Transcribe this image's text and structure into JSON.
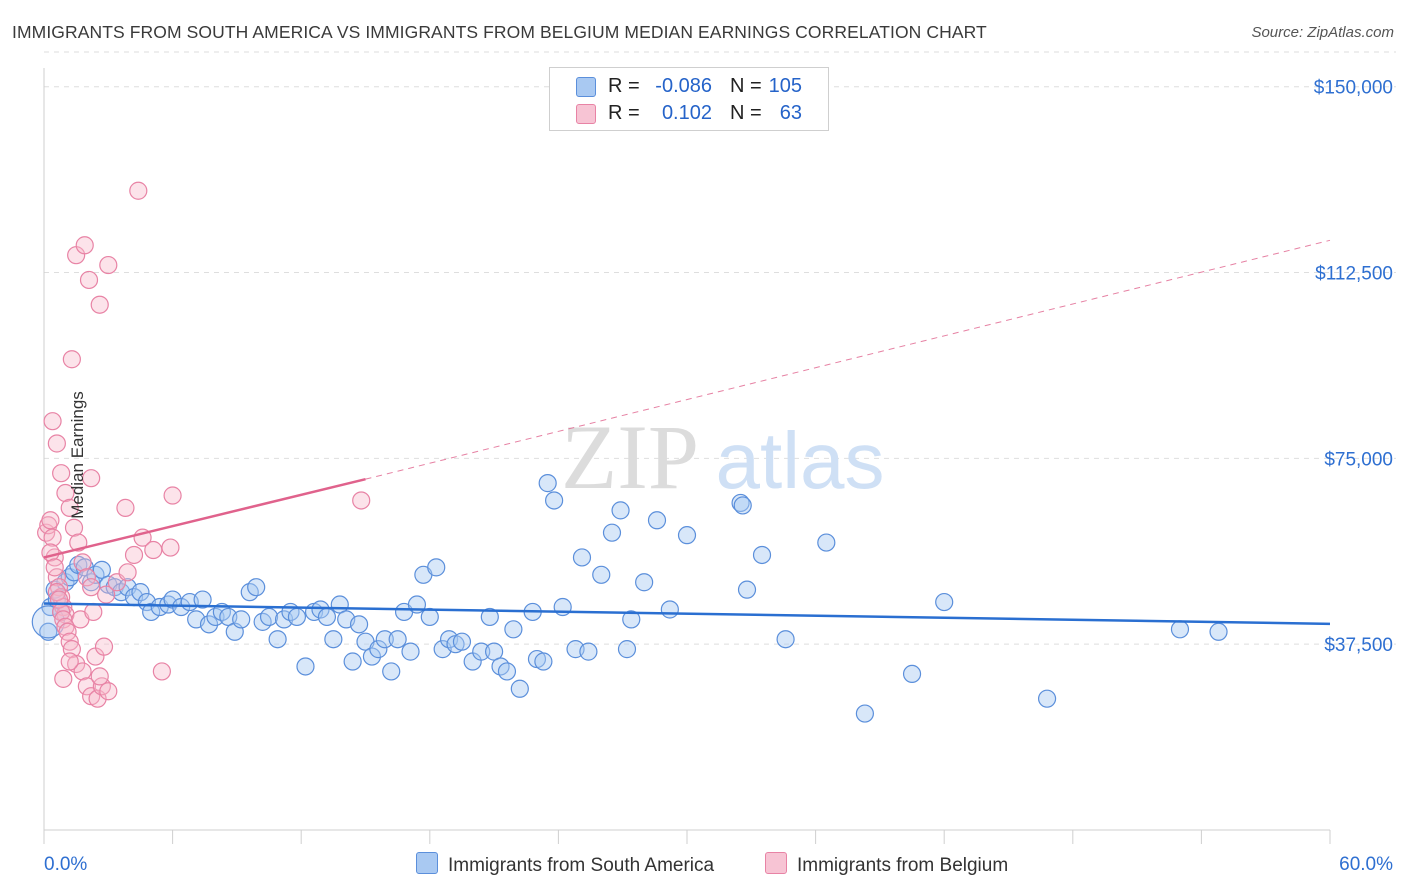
{
  "title": "IMMIGRANTS FROM SOUTH AMERICA VS IMMIGRANTS FROM BELGIUM MEDIAN EARNINGS CORRELATION CHART",
  "source": "Source: ZipAtlas.com",
  "watermark": {
    "part1": "ZIP",
    "part2": "atlas"
  },
  "legend": {
    "rows": [
      {
        "r_label": "R =",
        "r_value": "-0.086",
        "n_label": "N =",
        "n_value": "105"
      },
      {
        "r_label": "R =",
        "r_value": "0.102",
        "n_label": "N =",
        "n_value": "63"
      }
    ]
  },
  "bottom_legend": {
    "blue_label": "Immigrants from South America",
    "pink_label": "Immigrants from Belgium"
  },
  "colors": {
    "blue_fill": "#a9c9f2",
    "blue_stroke": "#5b8fdb",
    "blue_line": "#2a6fd1",
    "pink_fill": "#f7b8cb",
    "pink_stroke": "#e883a5",
    "pink_line": "#e0628c",
    "axis_text": "#2e6fd1"
  },
  "chart_data": {
    "type": "scatter",
    "title": "IMMIGRANTS FROM SOUTH AMERICA VS IMMIGRANTS FROM BELGIUM MEDIAN EARNINGS CORRELATION CHART",
    "xlabel": "",
    "ylabel": "Median Earnings",
    "xlim": [
      0,
      60
    ],
    "ylim": [
      0,
      157000
    ],
    "x_tick_labels": [
      "0.0%",
      "60.0%"
    ],
    "y_ticks": [
      37500,
      75000,
      112500,
      150000
    ],
    "y_tick_labels": [
      "$37,500",
      "$75,000",
      "$112,500",
      "$150,000"
    ],
    "series": [
      {
        "name": "Immigrants from South America",
        "color": "blue",
        "R": -0.086,
        "N": 105,
        "trend": {
          "x": [
            0,
            60
          ],
          "y": [
            45700,
            41600
          ],
          "dashed_to": null
        },
        "points": [
          [
            0.2,
            40000
          ],
          [
            0.3,
            45000
          ],
          [
            0.5,
            48500
          ],
          [
            0.6,
            46500
          ],
          [
            0.8,
            44000
          ],
          [
            1.0,
            50000
          ],
          [
            1.2,
            51000
          ],
          [
            1.4,
            52000
          ],
          [
            1.6,
            53500
          ],
          [
            1.9,
            53000
          ],
          [
            2.2,
            50000
          ],
          [
            2.4,
            51500
          ],
          [
            2.7,
            52500
          ],
          [
            3.0,
            49500
          ],
          [
            3.3,
            49000
          ],
          [
            3.6,
            48000
          ],
          [
            3.9,
            49000
          ],
          [
            4.2,
            47000
          ],
          [
            4.5,
            48000
          ],
          [
            4.8,
            46000
          ],
          [
            5.0,
            44000
          ],
          [
            5.4,
            45000
          ],
          [
            5.8,
            45500
          ],
          [
            6.0,
            46500
          ],
          [
            6.4,
            45000
          ],
          [
            6.8,
            46000
          ],
          [
            7.1,
            42500
          ],
          [
            7.4,
            46500
          ],
          [
            7.7,
            41500
          ],
          [
            8.0,
            43000
          ],
          [
            8.3,
            44000
          ],
          [
            8.6,
            43000
          ],
          [
            8.9,
            40000
          ],
          [
            9.2,
            42500
          ],
          [
            9.6,
            48000
          ],
          [
            9.9,
            49000
          ],
          [
            10.2,
            42000
          ],
          [
            10.5,
            43000
          ],
          [
            10.9,
            38500
          ],
          [
            11.2,
            42500
          ],
          [
            11.5,
            44000
          ],
          [
            11.8,
            43000
          ],
          [
            12.2,
            33000
          ],
          [
            12.6,
            44000
          ],
          [
            12.9,
            44500
          ],
          [
            13.2,
            43000
          ],
          [
            13.5,
            38500
          ],
          [
            13.8,
            45500
          ],
          [
            14.1,
            42500
          ],
          [
            14.4,
            34000
          ],
          [
            14.7,
            41500
          ],
          [
            15.0,
            38000
          ],
          [
            15.3,
            35000
          ],
          [
            15.6,
            36500
          ],
          [
            15.9,
            38500
          ],
          [
            16.2,
            32000
          ],
          [
            16.5,
            38500
          ],
          [
            16.8,
            44000
          ],
          [
            17.1,
            36000
          ],
          [
            17.4,
            45500
          ],
          [
            17.7,
            51500
          ],
          [
            18.0,
            43000
          ],
          [
            18.3,
            53000
          ],
          [
            18.6,
            36500
          ],
          [
            18.9,
            38500
          ],
          [
            19.2,
            37500
          ],
          [
            19.5,
            38000
          ],
          [
            20.0,
            34000
          ],
          [
            20.4,
            36000
          ],
          [
            20.8,
            43000
          ],
          [
            21.0,
            36000
          ],
          [
            21.3,
            33000
          ],
          [
            21.6,
            32000
          ],
          [
            21.9,
            40500
          ],
          [
            22.2,
            28500
          ],
          [
            22.8,
            44000
          ],
          [
            23.0,
            34500
          ],
          [
            23.3,
            34000
          ],
          [
            23.5,
            70000
          ],
          [
            23.8,
            66500
          ],
          [
            24.2,
            45000
          ],
          [
            24.8,
            36500
          ],
          [
            25.1,
            55000
          ],
          [
            25.4,
            36000
          ],
          [
            26.0,
            51500
          ],
          [
            26.5,
            60000
          ],
          [
            26.9,
            64500
          ],
          [
            27.2,
            36500
          ],
          [
            27.4,
            42500
          ],
          [
            28.0,
            50000
          ],
          [
            28.6,
            62500
          ],
          [
            29.2,
            44500
          ],
          [
            30.0,
            59500
          ],
          [
            32.5,
            66000
          ],
          [
            32.6,
            65500
          ],
          [
            32.8,
            48500
          ],
          [
            33.5,
            55500
          ],
          [
            34.6,
            38500
          ],
          [
            36.5,
            58000
          ],
          [
            40.5,
            31500
          ],
          [
            42.0,
            46000
          ],
          [
            46.8,
            26500
          ],
          [
            53.0,
            40500
          ],
          [
            54.8,
            40000
          ],
          [
            38.3,
            23500
          ]
        ]
      },
      {
        "name": "Immigrants from Belgium",
        "color": "pink",
        "R": 0.102,
        "N": 63,
        "trend": {
          "x": [
            0,
            15
          ],
          "y": [
            55000,
            70800
          ],
          "dashed_to": {
            "x": 60,
            "y": 119000
          }
        },
        "points": [
          [
            0.1,
            60000
          ],
          [
            0.2,
            61500
          ],
          [
            0.3,
            62500
          ],
          [
            0.4,
            59000
          ],
          [
            0.5,
            55000
          ],
          [
            0.6,
            51000
          ],
          [
            0.7,
            49000
          ],
          [
            0.8,
            47000
          ],
          [
            0.9,
            45000
          ],
          [
            1.0,
            43500
          ],
          [
            0.3,
            56000
          ],
          [
            0.5,
            53000
          ],
          [
            0.6,
            48000
          ],
          [
            0.7,
            46500
          ],
          [
            0.8,
            44000
          ],
          [
            0.9,
            42500
          ],
          [
            1.0,
            41000
          ],
          [
            1.1,
            40000
          ],
          [
            1.2,
            38000
          ],
          [
            1.3,
            36500
          ],
          [
            0.4,
            82500
          ],
          [
            0.6,
            78000
          ],
          [
            0.8,
            72000
          ],
          [
            1.0,
            68000
          ],
          [
            1.2,
            65000
          ],
          [
            1.4,
            61000
          ],
          [
            1.6,
            58000
          ],
          [
            1.8,
            54000
          ],
          [
            2.0,
            51000
          ],
          [
            2.2,
            49000
          ],
          [
            1.5,
            116000
          ],
          [
            1.9,
            118000
          ],
          [
            2.1,
            111000
          ],
          [
            2.6,
            106000
          ],
          [
            3.0,
            114000
          ],
          [
            4.4,
            129000
          ],
          [
            1.3,
            95000
          ],
          [
            2.2,
            71000
          ],
          [
            3.8,
            65000
          ],
          [
            6.0,
            67500
          ],
          [
            1.5,
            33500
          ],
          [
            1.8,
            32000
          ],
          [
            2.0,
            29000
          ],
          [
            2.2,
            27000
          ],
          [
            2.5,
            26500
          ],
          [
            2.7,
            29000
          ],
          [
            3.0,
            28000
          ],
          [
            2.4,
            35000
          ],
          [
            2.8,
            37000
          ],
          [
            1.7,
            42500
          ],
          [
            2.3,
            44000
          ],
          [
            2.9,
            47500
          ],
          [
            3.4,
            50000
          ],
          [
            3.9,
            52000
          ],
          [
            4.2,
            55500
          ],
          [
            4.6,
            59000
          ],
          [
            5.1,
            56500
          ],
          [
            5.5,
            32000
          ],
          [
            5.9,
            57000
          ],
          [
            14.8,
            66500
          ],
          [
            0.9,
            30500
          ],
          [
            1.2,
            34000
          ],
          [
            2.6,
            31000
          ]
        ]
      }
    ]
  }
}
